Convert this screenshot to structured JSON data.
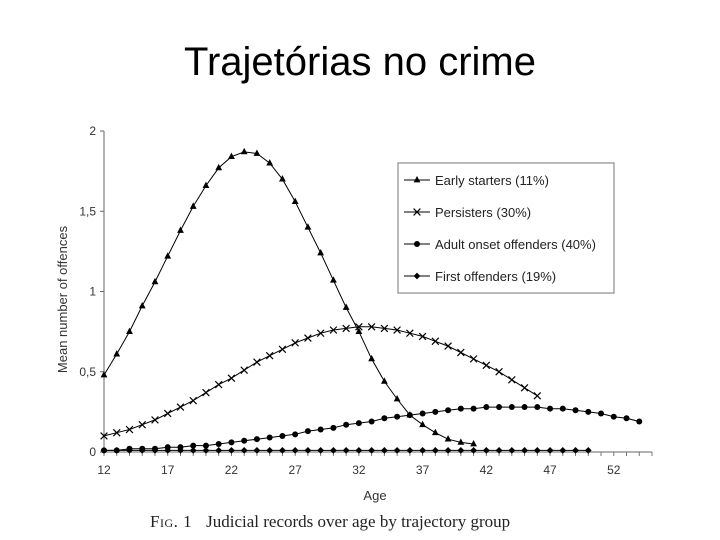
{
  "slide": {
    "title": "Trajetórias no crime"
  },
  "caption": {
    "fig_label": "Fig. 1",
    "text": "Judicial records over age by trajectory group"
  },
  "chart_data": {
    "type": "line",
    "title": "",
    "xlabel": "Age",
    "ylabel": "Mean number of offences",
    "xlim": [
      12,
      55
    ],
    "ylim": [
      0,
      2
    ],
    "xticks": [
      12,
      17,
      22,
      27,
      32,
      37,
      42,
      47,
      52
    ],
    "yticks": [
      {
        "value": 0,
        "label": "0"
      },
      {
        "value": 0.5,
        "label": "0,5"
      },
      {
        "value": 1,
        "label": "1"
      },
      {
        "value": 1.5,
        "label": "1,5"
      },
      {
        "value": 2,
        "label": "2"
      }
    ],
    "grid": false,
    "legend": "top-right",
    "series": [
      {
        "name": "Early starters (11%)",
        "marker": "triangle",
        "color": "#000000",
        "x": [
          12,
          13,
          14,
          15,
          16,
          17,
          18,
          19,
          20,
          21,
          22,
          23,
          24,
          25,
          26,
          27,
          28,
          29,
          30,
          31,
          32,
          33,
          34,
          35,
          36,
          37,
          38,
          39,
          40,
          41
        ],
        "y": [
          0.48,
          0.61,
          0.75,
          0.91,
          1.06,
          1.22,
          1.38,
          1.53,
          1.66,
          1.77,
          1.84,
          1.87,
          1.86,
          1.8,
          1.7,
          1.56,
          1.4,
          1.24,
          1.07,
          0.9,
          0.75,
          0.58,
          0.44,
          0.33,
          0.23,
          0.17,
          0.12,
          0.08,
          0.06,
          0.05
        ]
      },
      {
        "name": "Persisters (30%)",
        "marker": "x",
        "color": "#000000",
        "x": [
          12,
          13,
          14,
          15,
          16,
          17,
          18,
          19,
          20,
          21,
          22,
          23,
          24,
          25,
          26,
          27,
          28,
          29,
          30,
          31,
          32,
          33,
          34,
          35,
          36,
          37,
          38,
          39,
          40,
          41,
          42,
          43,
          44,
          45,
          46
        ],
        "y": [
          0.1,
          0.12,
          0.14,
          0.17,
          0.2,
          0.24,
          0.28,
          0.32,
          0.37,
          0.42,
          0.46,
          0.51,
          0.56,
          0.6,
          0.64,
          0.68,
          0.71,
          0.74,
          0.76,
          0.77,
          0.78,
          0.78,
          0.77,
          0.76,
          0.74,
          0.72,
          0.69,
          0.66,
          0.62,
          0.58,
          0.54,
          0.5,
          0.45,
          0.4,
          0.35
        ]
      },
      {
        "name": "Adult onset offenders (40%)",
        "marker": "circle",
        "color": "#000000",
        "x": [
          12,
          13,
          14,
          15,
          16,
          17,
          18,
          19,
          20,
          21,
          22,
          23,
          24,
          25,
          26,
          27,
          28,
          29,
          30,
          31,
          32,
          33,
          34,
          35,
          36,
          37,
          38,
          39,
          40,
          41,
          42,
          43,
          44,
          45,
          46,
          47,
          48,
          49,
          50,
          51,
          52,
          53,
          54
        ],
        "y": [
          0.01,
          0.01,
          0.02,
          0.02,
          0.02,
          0.03,
          0.03,
          0.04,
          0.04,
          0.05,
          0.06,
          0.07,
          0.08,
          0.09,
          0.1,
          0.11,
          0.13,
          0.14,
          0.15,
          0.17,
          0.18,
          0.19,
          0.21,
          0.22,
          0.23,
          0.24,
          0.25,
          0.26,
          0.27,
          0.27,
          0.28,
          0.28,
          0.28,
          0.28,
          0.28,
          0.27,
          0.27,
          0.26,
          0.25,
          0.24,
          0.22,
          0.21,
          0.19
        ]
      },
      {
        "name": "First offenders (19%)",
        "marker": "diamond",
        "color": "#000000",
        "x": [
          12,
          13,
          14,
          15,
          16,
          17,
          18,
          19,
          20,
          21,
          22,
          23,
          24,
          25,
          26,
          27,
          28,
          29,
          30,
          31,
          32,
          33,
          34,
          35,
          36,
          37,
          38,
          39,
          40,
          41,
          42,
          43,
          44,
          45,
          46,
          47,
          48,
          49,
          50
        ],
        "y": [
          0.01,
          0.01,
          0.01,
          0.01,
          0.01,
          0.01,
          0.01,
          0.01,
          0.01,
          0.01,
          0.01,
          0.01,
          0.01,
          0.01,
          0.01,
          0.01,
          0.01,
          0.01,
          0.01,
          0.01,
          0.01,
          0.01,
          0.01,
          0.01,
          0.01,
          0.01,
          0.01,
          0.01,
          0.01,
          0.01,
          0.01,
          0.01,
          0.01,
          0.01,
          0.01,
          0.01,
          0.01,
          0.01,
          0.01
        ]
      }
    ]
  }
}
